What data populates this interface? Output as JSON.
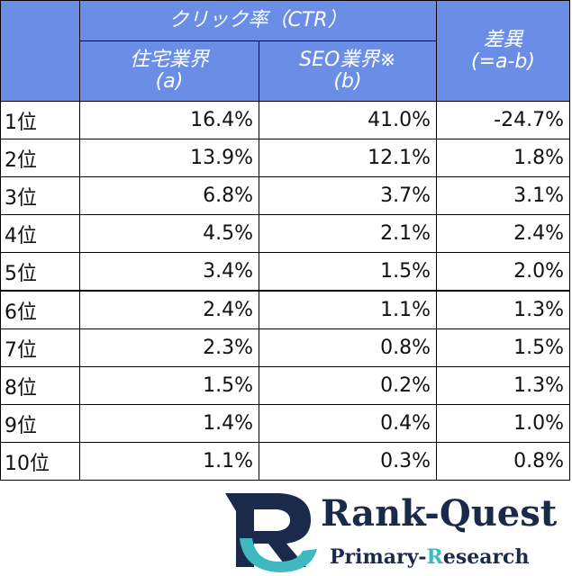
{
  "table": {
    "header": {
      "group": "クリック率（CTR）",
      "col_a": [
        "住宅業界",
        "(a)"
      ],
      "col_b": [
        "SEO業界※",
        "(b)"
      ],
      "col_diff": [
        "差異",
        "(=a-b)"
      ]
    },
    "rows": [
      [
        "1位",
        "16.4%",
        "41.0%",
        "-24.7%"
      ],
      [
        "2位",
        "13.9%",
        "12.1%",
        "1.8%"
      ],
      [
        "3位",
        "6.8%",
        "3.7%",
        "3.1%"
      ],
      [
        "4位",
        "4.5%",
        "2.1%",
        "2.4%"
      ],
      [
        "5位",
        "3.4%",
        "1.5%",
        "2.0%"
      ],
      [
        "6位",
        "2.4%",
        "1.1%",
        "1.3%"
      ],
      [
        "7位",
        "2.3%",
        "0.8%",
        "1.5%"
      ],
      [
        "8位",
        "1.5%",
        "0.2%",
        "1.3%"
      ],
      [
        "9位",
        "1.4%",
        "0.4%",
        "1.0%"
      ],
      [
        "10位",
        "1.1%",
        "0.3%",
        "0.8%"
      ]
    ]
  },
  "logo": {
    "name": "Rank-Quest",
    "tagline": [
      "Primary-",
      "R",
      "esearch"
    ]
  }
}
